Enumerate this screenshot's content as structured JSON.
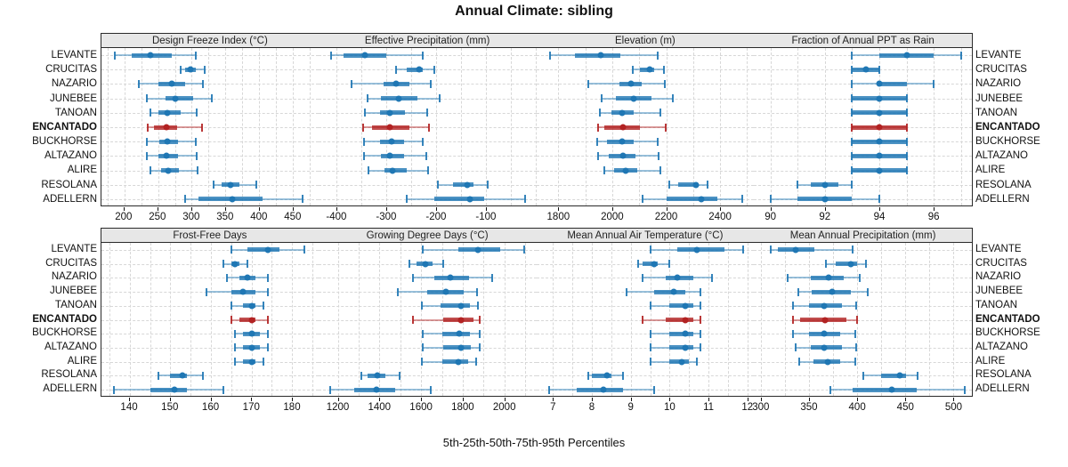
{
  "title": "Annual Climate: sibling",
  "caption": "5th-25th-50th-75th-95th Percentiles",
  "highlight_site": "ENCANTADO",
  "colors": {
    "blue": "#1F77B4",
    "red": "#B22222",
    "header_bg": "#E7E7E7",
    "panel_border": "#2A2A2A",
    "gridline": "#D7D7D7"
  },
  "sites": [
    "LEVANTE",
    "CRUCITAS",
    "NAZARIO",
    "JUNEBEE",
    "TANOAN",
    "ENCANTADO",
    "BUCKHORSE",
    "ALTAZANO",
    "ALIRE",
    "RESOLANA",
    "ADELLERN"
  ],
  "chart_data": {
    "type": "dotplot-percentiles",
    "percentile_labels": [
      "5th",
      "25th",
      "50th",
      "75th",
      "95th"
    ],
    "grid": "dashed",
    "layout": "2 rows x 4 columns, site labels on both sides, ENCANTADO highlighted red/bold",
    "panels": [
      {
        "title": "Design Freeze Index (°C)",
        "xlim": [
          166,
          488
        ],
        "ticks": [
          200,
          250,
          300,
          350,
          400,
          450
        ],
        "values": {
          "LEVANTE": [
            186,
            211,
            239,
            270,
            306
          ],
          "CRUCITAS": [
            284,
            290,
            298,
            306,
            319
          ],
          "NAZARIO": [
            221,
            250,
            270,
            290,
            317
          ],
          "JUNEBEE": [
            234,
            261,
            275,
            302,
            330
          ],
          "TANOAN": [
            238,
            251,
            264,
            283,
            308
          ],
          "ENCANTADO": [
            235,
            244,
            263,
            278,
            315
          ],
          "BUCKHORSE": [
            234,
            252,
            264,
            280,
            306
          ],
          "ALTAZANO": [
            233,
            251,
            263,
            280,
            307
          ],
          "ALIRE": [
            238,
            254,
            265,
            281,
            309
          ],
          "RESOLANA": [
            332,
            344,
            357,
            371,
            396
          ],
          "ADELLERN": [
            290,
            310,
            360,
            405,
            465
          ]
        }
      },
      {
        "title": "Effective Precipitation (mm)",
        "xlim": [
          -436,
          1
        ],
        "ticks": [
          -400,
          -300,
          -200,
          -100
        ],
        "values": {
          "LEVANTE": [
            -410,
            -385,
            -343,
            -300,
            -227
          ],
          "CRUCITAS": [
            -280,
            -258,
            -234,
            -226,
            -203
          ],
          "NAZARIO": [
            -370,
            -305,
            -281,
            -253,
            -210
          ],
          "JUNEBEE": [
            -338,
            -310,
            -275,
            -238,
            -192
          ],
          "TANOAN": [
            -343,
            -313,
            -293,
            -262,
            -217
          ],
          "ENCANTADO": [
            -346,
            -328,
            -293,
            -253,
            -214
          ],
          "BUCKHORSE": [
            -345,
            -313,
            -290,
            -265,
            -226
          ],
          "ALTAZANO": [
            -345,
            -310,
            -292,
            -264,
            -220
          ],
          "ALIRE": [
            -336,
            -304,
            -287,
            -259,
            -216
          ],
          "RESOLANA": [
            -196,
            -166,
            -137,
            -125,
            -96
          ],
          "ADELLERN": [
            -259,
            -204,
            -132,
            -104,
            -22
          ]
        }
      },
      {
        "title": "Elevation (m)",
        "xlim": [
          1718,
          2526
        ],
        "ticks": [
          1800,
          2000,
          2200,
          2400
        ],
        "values": {
          "LEVANTE": [
            1770,
            1860,
            1957,
            2031,
            2167
          ],
          "CRUCITAS": [
            2075,
            2103,
            2139,
            2156,
            2191
          ],
          "NAZARIO": [
            1910,
            2026,
            2068,
            2108,
            2196
          ],
          "JUNEBEE": [
            1962,
            2015,
            2081,
            2147,
            2226
          ],
          "TANOAN": [
            1954,
            1998,
            2037,
            2081,
            2178
          ],
          "ENCANTADO": [
            1949,
            1971,
            2039,
            2103,
            2199
          ],
          "BUCKHORSE": [
            1945,
            1982,
            2037,
            2081,
            2169
          ],
          "ALTAZANO": [
            1947,
            1987,
            2039,
            2086,
            2172
          ],
          "ALIRE": [
            1969,
            2006,
            2050,
            2092,
            2178
          ],
          "RESOLANA": [
            2213,
            2246,
            2310,
            2318,
            2354
          ],
          "ADELLERN": [
            2112,
            2202,
            2332,
            2389,
            2483
          ]
        }
      },
      {
        "title": "Fraction of Annual PPT as Rain",
        "xlim": [
          89.4,
          97.4
        ],
        "ticks": [
          90,
          92,
          94,
          96
        ],
        "values": {
          "LEVANTE": [
            93,
            94,
            95,
            96,
            97
          ],
          "CRUCITAS": [
            93,
            93,
            93.5,
            94,
            94
          ],
          "NAZARIO": [
            93,
            94,
            94,
            95,
            96
          ],
          "JUNEBEE": [
            93,
            93,
            94,
            95,
            95
          ],
          "TANOAN": [
            93,
            93,
            94,
            95,
            95
          ],
          "ENCANTADO": [
            93,
            93,
            94,
            95,
            95
          ],
          "BUCKHORSE": [
            93,
            93,
            94,
            95,
            95
          ],
          "ALTAZANO": [
            93,
            93,
            94,
            95,
            95
          ],
          "ALIRE": [
            93,
            93,
            94,
            95,
            95
          ],
          "RESOLANA": [
            91,
            91.5,
            92,
            92.5,
            93
          ],
          "ADELLERN": [
            90,
            91,
            92,
            93,
            94
          ]
        }
      },
      {
        "title": "Frost-Free Days",
        "xlim": [
          133,
          186.5
        ],
        "ticks": [
          140,
          150,
          160,
          170,
          180
        ],
        "values": {
          "LEVANTE": [
            165,
            169,
            174,
            177,
            183
          ],
          "CRUCITAS": [
            163,
            165,
            166,
            167,
            169
          ],
          "NAZARIO": [
            164,
            167,
            169,
            171,
            174
          ],
          "JUNEBEE": [
            159,
            165,
            168,
            171,
            174
          ],
          "TANOAN": [
            165,
            168,
            170,
            171,
            173
          ],
          "ENCANTADO": [
            165,
            167,
            170,
            171,
            174
          ],
          "BUCKHORSE": [
            166,
            168,
            170,
            172,
            174
          ],
          "ALTAZANO": [
            166,
            168,
            170,
            172,
            174
          ],
          "ALIRE": [
            166,
            168,
            170,
            171,
            173
          ],
          "RESOLANA": [
            147,
            150,
            153,
            154,
            158
          ],
          "ADELLERN": [
            136,
            145,
            151,
            154,
            163
          ]
        }
      },
      {
        "title": "Growing Degree Days (°C)",
        "xlim": [
          1107,
          2153
        ],
        "ticks": [
          1200,
          1400,
          1600,
          1800,
          2000
        ],
        "values": {
          "LEVANTE": [
            1610,
            1780,
            1875,
            1980,
            2095
          ],
          "CRUCITAS": [
            1545,
            1580,
            1620,
            1655,
            1705
          ],
          "NAZARIO": [
            1560,
            1665,
            1740,
            1830,
            1940
          ],
          "JUNEBEE": [
            1490,
            1630,
            1720,
            1805,
            1870
          ],
          "TANOAN": [
            1605,
            1695,
            1790,
            1835,
            1875
          ],
          "ENCANTADO": [
            1560,
            1705,
            1790,
            1850,
            1880
          ],
          "BUCKHORSE": [
            1610,
            1700,
            1785,
            1835,
            1880
          ],
          "ALTAZANO": [
            1610,
            1705,
            1790,
            1840,
            1880
          ],
          "ALIRE": [
            1605,
            1700,
            1780,
            1825,
            1865
          ],
          "RESOLANA": [
            1315,
            1345,
            1390,
            1430,
            1495
          ],
          "ADELLERN": [
            1165,
            1280,
            1385,
            1475,
            1645
          ]
        }
      },
      {
        "title": "Mean Annual Air Temperature (°C)",
        "xlim": [
          6.57,
          12.17
        ],
        "ticks": [
          7,
          8,
          9,
          10,
          11,
          12
        ],
        "values": {
          "LEVANTE": [
            9.5,
            10.2,
            10.7,
            11.4,
            11.9
          ],
          "CRUCITAS": [
            9.2,
            9.3,
            9.6,
            9.7,
            10.0
          ],
          "NAZARIO": [
            9.3,
            9.9,
            10.2,
            10.6,
            11.1
          ],
          "JUNEBEE": [
            8.9,
            9.6,
            10.1,
            10.4,
            10.8
          ],
          "TANOAN": [
            9.5,
            10.0,
            10.4,
            10.6,
            10.8
          ],
          "ENCANTADO": [
            9.3,
            9.9,
            10.4,
            10.6,
            10.8
          ],
          "BUCKHORSE": [
            9.5,
            10.0,
            10.4,
            10.6,
            10.8
          ],
          "ALTAZANO": [
            9.5,
            10.0,
            10.4,
            10.6,
            10.8
          ],
          "ALIRE": [
            9.5,
            10.0,
            10.3,
            10.5,
            10.7
          ],
          "RESOLANA": [
            7.9,
            8.0,
            8.4,
            8.5,
            8.8
          ],
          "ADELLERN": [
            6.9,
            7.6,
            8.3,
            8.8,
            9.6
          ]
        }
      },
      {
        "title": "Mean Annual Precipitation (mm)",
        "xlim": [
          293,
          519
        ],
        "ticks": [
          300,
          350,
          400,
          450,
          500
        ],
        "values": {
          "LEVANTE": [
            310,
            318,
            336,
            356,
            395
          ],
          "CRUCITAS": [
            368,
            378,
            393,
            400,
            409
          ],
          "NAZARIO": [
            328,
            352,
            370,
            386,
            403
          ],
          "JUNEBEE": [
            339,
            353,
            374,
            393,
            411
          ],
          "TANOAN": [
            333,
            350,
            366,
            384,
            399
          ],
          "ENCANTADO": [
            333,
            341,
            367,
            389,
            400
          ],
          "BUCKHORSE": [
            333,
            350,
            366,
            382,
            398
          ],
          "ALTAZANO": [
            336,
            352,
            366,
            384,
            399
          ],
          "ALIRE": [
            340,
            355,
            369,
            382,
            398
          ],
          "RESOLANA": [
            406,
            425,
            444,
            451,
            463
          ],
          "ADELLERN": [
            372,
            395,
            436,
            462,
            512
          ]
        }
      }
    ]
  }
}
